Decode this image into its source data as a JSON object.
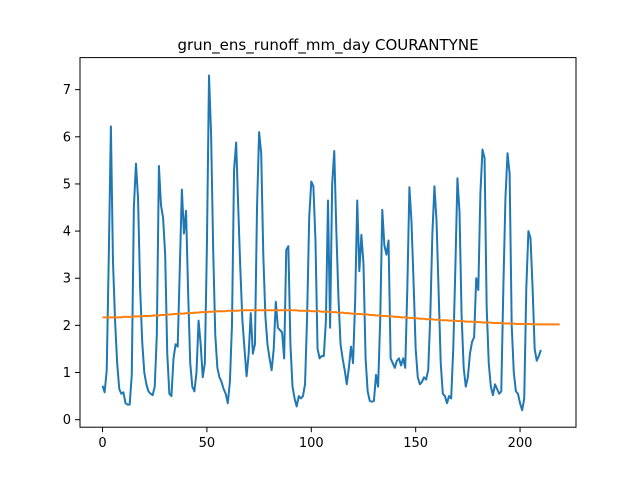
{
  "chart_data": {
    "type": "line",
    "title": "grun_ens_runoff_mm_day COURANTYNE",
    "xlabel": "",
    "ylabel": "",
    "xlim": [
      -10.8,
      226.8
    ],
    "ylim": [
      -0.16,
      7.68
    ],
    "x_ticks": [
      0,
      50,
      100,
      150,
      200
    ],
    "y_ticks": [
      0,
      1,
      2,
      3,
      4,
      5,
      6,
      7
    ],
    "grid": false,
    "colors": {
      "series1": "#1f77b4",
      "series2": "#ff7f0e"
    },
    "series": [
      {
        "color": "#1f77b4",
        "y": [
          0.72,
          0.58,
          1.05,
          3.5,
          6.22,
          3.35,
          2.1,
          1.2,
          0.65,
          0.55,
          0.58,
          0.35,
          0.32,
          0.32,
          0.95,
          4.5,
          5.43,
          4.7,
          2.8,
          1.65,
          1.0,
          0.75,
          0.6,
          0.55,
          0.52,
          0.7,
          1.8,
          5.38,
          4.55,
          4.28,
          3.5,
          1.4,
          0.55,
          0.5,
          1.3,
          1.6,
          1.55,
          3.2,
          4.88,
          3.95,
          4.43,
          2.7,
          1.2,
          0.7,
          0.6,
          1.0,
          2.1,
          1.6,
          0.9,
          1.2,
          3.7,
          7.3,
          6.05,
          3.6,
          1.8,
          1.1,
          0.9,
          0.8,
          0.65,
          0.55,
          0.35,
          0.8,
          2.0,
          5.3,
          5.88,
          4.5,
          3.2,
          2.1,
          1.5,
          0.92,
          1.4,
          2.26,
          1.4,
          1.6,
          4.5,
          6.1,
          5.65,
          3.5,
          2.2,
          1.6,
          1.3,
          1.05,
          1.5,
          2.5,
          1.95,
          1.9,
          1.85,
          1.3,
          3.6,
          3.68,
          1.6,
          0.7,
          0.45,
          0.28,
          0.5,
          0.45,
          0.5,
          0.75,
          2.2,
          4.3,
          5.05,
          4.95,
          3.8,
          1.5,
          1.3,
          1.35,
          1.35,
          2.1,
          4.65,
          1.95,
          5.0,
          5.7,
          4.0,
          2.6,
          1.6,
          1.3,
          1.05,
          0.75,
          1.1,
          1.55,
          1.2,
          2.5,
          4.65,
          3.15,
          3.92,
          3.3,
          1.3,
          0.6,
          0.4,
          0.38,
          0.4,
          0.95,
          0.7,
          2.1,
          4.45,
          3.7,
          3.5,
          3.8,
          1.3,
          1.2,
          1.1,
          1.25,
          1.3,
          1.15,
          1.3,
          1.1,
          2.8,
          4.93,
          4.2,
          2.9,
          1.5,
          0.9,
          0.75,
          0.8,
          0.9,
          0.85,
          1.05,
          2.2,
          3.95,
          4.95,
          4.2,
          2.7,
          1.2,
          0.55,
          0.5,
          0.35,
          0.5,
          0.45,
          1.5,
          3.2,
          5.12,
          4.4,
          2.2,
          1.1,
          0.7,
          0.9,
          1.4,
          1.65,
          1.75,
          3.0,
          2.75,
          4.8,
          5.73,
          5.55,
          2.4,
          1.2,
          0.7,
          0.52,
          0.75,
          0.65,
          0.55,
          0.6,
          2.8,
          4.7,
          5.65,
          5.22,
          2.0,
          1.0,
          0.6,
          0.55,
          0.35,
          0.2,
          0.45,
          2.8,
          4.0,
          3.85,
          2.8,
          1.5,
          1.25,
          1.35,
          1.48
        ]
      },
      {
        "color": "#ff7f0e",
        "y": [
          2.17,
          2.17,
          2.17,
          2.17,
          2.17,
          2.17,
          2.17,
          2.17,
          2.17,
          2.17,
          2.18,
          2.18,
          2.18,
          2.18,
          2.18,
          2.19,
          2.19,
          2.19,
          2.19,
          2.19,
          2.2,
          2.2,
          2.2,
          2.2,
          2.21,
          2.21,
          2.21,
          2.21,
          2.22,
          2.22,
          2.22,
          2.23,
          2.23,
          2.23,
          2.24,
          2.24,
          2.24,
          2.25,
          2.25,
          2.25,
          2.26,
          2.26,
          2.26,
          2.26,
          2.27,
          2.27,
          2.27,
          2.28,
          2.28,
          2.28,
          2.28,
          2.29,
          2.29,
          2.29,
          2.29,
          2.3,
          2.3,
          2.3,
          2.3,
          2.3,
          2.31,
          2.31,
          2.31,
          2.31,
          2.31,
          2.31,
          2.32,
          2.32,
          2.32,
          2.32,
          2.32,
          2.32,
          2.32,
          2.32,
          2.32,
          2.32,
          2.32,
          2.32,
          2.32,
          2.32,
          2.32,
          2.32,
          2.32,
          2.32,
          2.32,
          2.32,
          2.32,
          2.32,
          2.32,
          2.32,
          2.32,
          2.32,
          2.32,
          2.32,
          2.31,
          2.31,
          2.31,
          2.31,
          2.31,
          2.31,
          2.3,
          2.3,
          2.3,
          2.3,
          2.3,
          2.29,
          2.29,
          2.29,
          2.29,
          2.28,
          2.28,
          2.28,
          2.28,
          2.27,
          2.27,
          2.27,
          2.26,
          2.26,
          2.26,
          2.25,
          2.25,
          2.25,
          2.24,
          2.24,
          2.24,
          2.23,
          2.23,
          2.23,
          2.22,
          2.22,
          2.22,
          2.21,
          2.21,
          2.21,
          2.2,
          2.2,
          2.2,
          2.19,
          2.19,
          2.19,
          2.18,
          2.18,
          2.18,
          2.17,
          2.17,
          2.17,
          2.16,
          2.16,
          2.16,
          2.15,
          2.15,
          2.15,
          2.14,
          2.14,
          2.14,
          2.13,
          2.13,
          2.13,
          2.13,
          2.12,
          2.12,
          2.12,
          2.11,
          2.11,
          2.11,
          2.11,
          2.1,
          2.1,
          2.1,
          2.1,
          2.09,
          2.09,
          2.09,
          2.09,
          2.08,
          2.08,
          2.08,
          2.08,
          2.07,
          2.07,
          2.07,
          2.07,
          2.06,
          2.06,
          2.06,
          2.06,
          2.06,
          2.05,
          2.05,
          2.05,
          2.05,
          2.05,
          2.04,
          2.04,
          2.04,
          2.04,
          2.04,
          2.04,
          2.03,
          2.03,
          2.03,
          2.03,
          2.03,
          2.03,
          2.03,
          2.03,
          2.02,
          2.02,
          2.02,
          2.02,
          2.02,
          2.02,
          2.02,
          2.02,
          2.02,
          2.02,
          2.02,
          2.02,
          2.02,
          2.02
        ]
      }
    ]
  }
}
